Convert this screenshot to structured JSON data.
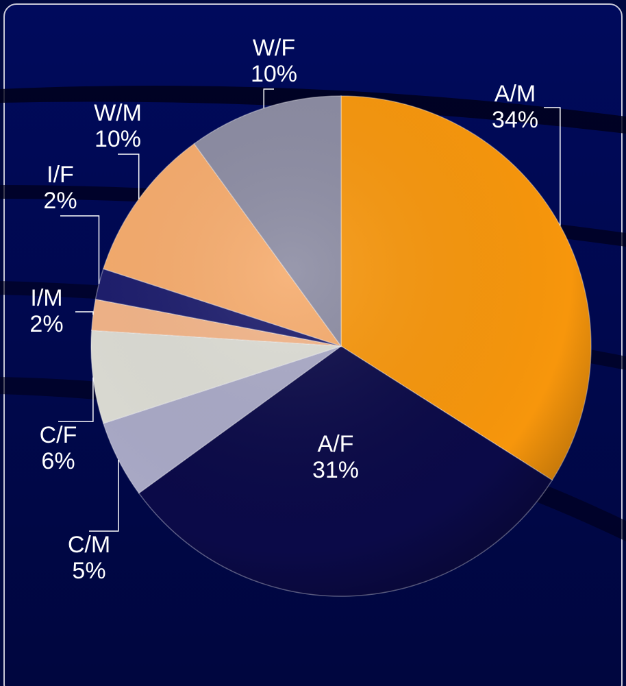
{
  "chart_data": {
    "type": "pie",
    "categories": [
      "A/M",
      "A/F",
      "C/M",
      "C/F",
      "I/M",
      "I/F",
      "W/M",
      "W/F"
    ],
    "values": [
      34,
      31,
      5,
      6,
      2,
      2,
      10,
      10
    ],
    "value_labels": [
      "34%",
      "31%",
      "5%",
      "6%",
      "2%",
      "2%",
      "10%",
      "10%"
    ],
    "colors": [
      "#f7960c",
      "#0b0a48",
      "#a9a9c6",
      "#dcdcd4",
      "#f2b488",
      "#1c1c6c",
      "#f6ab6c",
      "#8b8ba2"
    ]
  }
}
